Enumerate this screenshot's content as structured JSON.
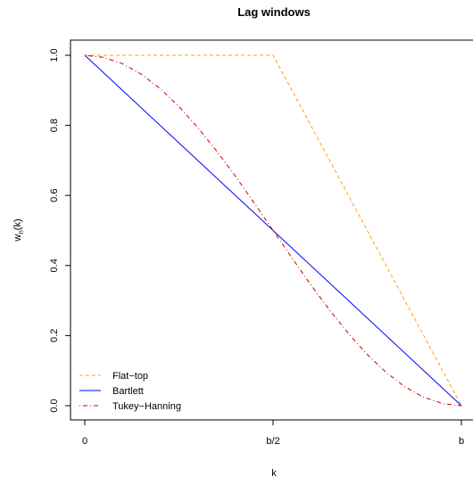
{
  "chart_data": {
    "type": "line",
    "title": "Lag windows",
    "xlabel": "k",
    "ylabel": "wₙ(k)",
    "ylabel_main": "w",
    "ylabel_sub": "n",
    "ylabel_arg": "(k)",
    "xlim": [
      0,
      2
    ],
    "ylim": [
      0,
      1
    ],
    "x_ticks": [
      {
        "value": 0,
        "label": "0"
      },
      {
        "value": 1,
        "label": "b/2"
      },
      {
        "value": 2,
        "label": "b"
      }
    ],
    "y_ticks": [
      {
        "value": 0.0,
        "label": "0.0"
      },
      {
        "value": 0.2,
        "label": "0.2"
      },
      {
        "value": 0.4,
        "label": "0.4"
      },
      {
        "value": 0.6,
        "label": "0.6"
      },
      {
        "value": 0.8,
        "label": "0.8"
      },
      {
        "value": 1.0,
        "label": "1.0"
      }
    ],
    "grid": false,
    "legend_position": "bottom-left",
    "series": [
      {
        "name": "Flat−top",
        "color": "#FFA500",
        "line_style": "dashed",
        "x": [
          0,
          1,
          2
        ],
        "y": [
          1.0,
          1.0,
          0.0
        ]
      },
      {
        "name": "Bartlett",
        "color": "#0000FF",
        "line_style": "solid",
        "x": [
          0,
          2
        ],
        "y": [
          1.0,
          0.0
        ]
      },
      {
        "name": "Tukey−Hanning",
        "color": "#CD0000",
        "line_style": "dotdash",
        "x": [
          0,
          0.1,
          0.2,
          0.3,
          0.4,
          0.5,
          0.6,
          0.7,
          0.8,
          0.9,
          1.0,
          1.1,
          1.2,
          1.3,
          1.4,
          1.5,
          1.6,
          1.7,
          1.8,
          1.9,
          2.0
        ],
        "y": [
          1.0,
          0.994,
          0.976,
          0.946,
          0.905,
          0.854,
          0.794,
          0.727,
          0.655,
          0.578,
          0.5,
          0.422,
          0.345,
          0.273,
          0.206,
          0.146,
          0.095,
          0.054,
          0.024,
          0.006,
          0.0
        ]
      }
    ]
  }
}
